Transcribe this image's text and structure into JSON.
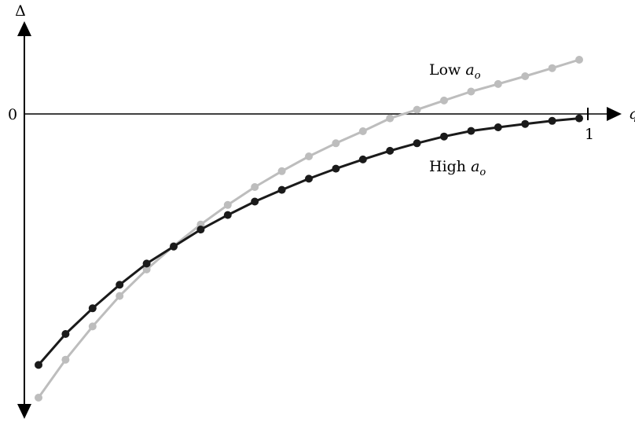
{
  "chart_data": {
    "type": "line",
    "xlabel": "q",
    "ylabel": "Δ",
    "zero_label": "0",
    "x_tick_label": "1",
    "xlim": [
      0,
      1
    ],
    "ylim": [
      -1,
      0.21
    ],
    "grid": false,
    "legend": "none",
    "x": [
      0,
      0.05,
      0.1,
      0.15,
      0.2,
      0.25,
      0.3,
      0.35,
      0.4,
      0.45,
      0.5,
      0.55,
      0.6,
      0.65,
      0.7,
      0.75,
      0.8,
      0.85,
      0.9,
      0.95,
      1
    ],
    "series": [
      {
        "name": "Low",
        "subscript_var": "a",
        "subscript": "o",
        "color": "#bdbdbd",
        "values": [
          -1,
          -0.864,
          -0.745,
          -0.636,
          -0.541,
          -0.457,
          -0.38,
          -0.31,
          -0.246,
          -0.189,
          -0.136,
          -0.089,
          -0.046,
          0,
          0.031,
          0.064,
          0.096,
          0.123,
          0.151,
          0.18,
          0.21
        ]
      },
      {
        "name": "High",
        "subscript_var": "a",
        "subscript": "o",
        "color": "#1a1a1a",
        "values": [
          -0.883,
          -0.772,
          -0.68,
          -0.596,
          -0.52,
          -0.459,
          -0.398,
          -0.346,
          -0.298,
          -0.256,
          -0.216,
          -0.18,
          -0.147,
          -0.116,
          -0.089,
          -0.065,
          -0.045,
          -0.032,
          -0.02,
          -0.009,
          0
        ]
      }
    ]
  }
}
